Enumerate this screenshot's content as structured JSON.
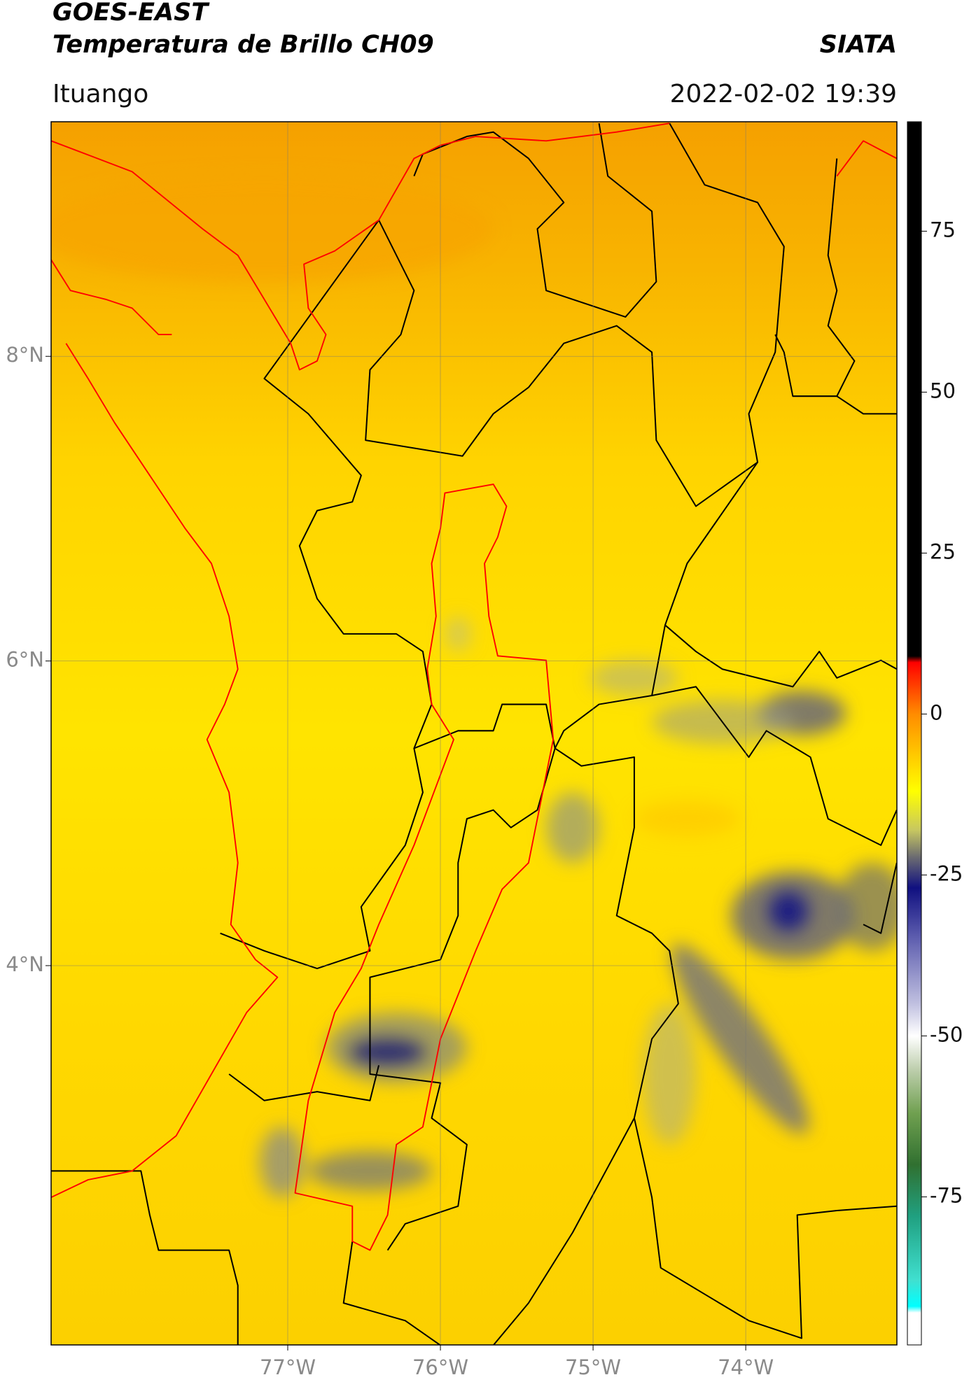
{
  "header": {
    "title": "GOES-EAST",
    "subtitle": "Temperatura de Brillo CH09",
    "brand": "SIATA",
    "place": "Ituango",
    "datetime": "2022-02-02 19:39"
  },
  "map": {
    "lonlim": [
      -78.55,
      -73.01
    ],
    "latlim": [
      1.51,
      9.54
    ],
    "xticks": [
      {
        "value": -77,
        "label": "77°W"
      },
      {
        "value": -76,
        "label": "76°W"
      },
      {
        "value": -75,
        "label": "75°W"
      },
      {
        "value": -74,
        "label": "74°W"
      }
    ],
    "yticks": [
      {
        "value": 8,
        "label": "8°N"
      },
      {
        "value": 6,
        "label": "6°N"
      },
      {
        "value": 4,
        "label": "4°N"
      }
    ]
  },
  "colorbar": {
    "lim": [
      -98,
      92
    ],
    "ticks": [
      75,
      50,
      25,
      0,
      -25,
      -50,
      -75
    ],
    "stops": [
      {
        "value": 92,
        "color": "#000000"
      },
      {
        "value": 9,
        "color": "#000000"
      },
      {
        "value": 8,
        "color": "#ff0000"
      },
      {
        "value": 0,
        "color": "#ff8c00"
      },
      {
        "value": -12,
        "color": "#ffff00"
      },
      {
        "value": -18,
        "color": "#c8c860"
      },
      {
        "value": -22,
        "color": "#707070"
      },
      {
        "value": -27,
        "color": "#101080"
      },
      {
        "value": -35,
        "color": "#6060b0"
      },
      {
        "value": -45,
        "color": "#c0c0e0"
      },
      {
        "value": -50,
        "color": "#ffffff"
      },
      {
        "value": -55,
        "color": "#c0d0b0"
      },
      {
        "value": -62,
        "color": "#70a050"
      },
      {
        "value": -70,
        "color": "#307030"
      },
      {
        "value": -78,
        "color": "#20a080"
      },
      {
        "value": -88,
        "color": "#40e0d0"
      },
      {
        "value": -92,
        "color": "#00ffff"
      },
      {
        "value": -93,
        "color": "#ffffff"
      },
      {
        "value": -98,
        "color": "#ffffff"
      }
    ]
  }
}
